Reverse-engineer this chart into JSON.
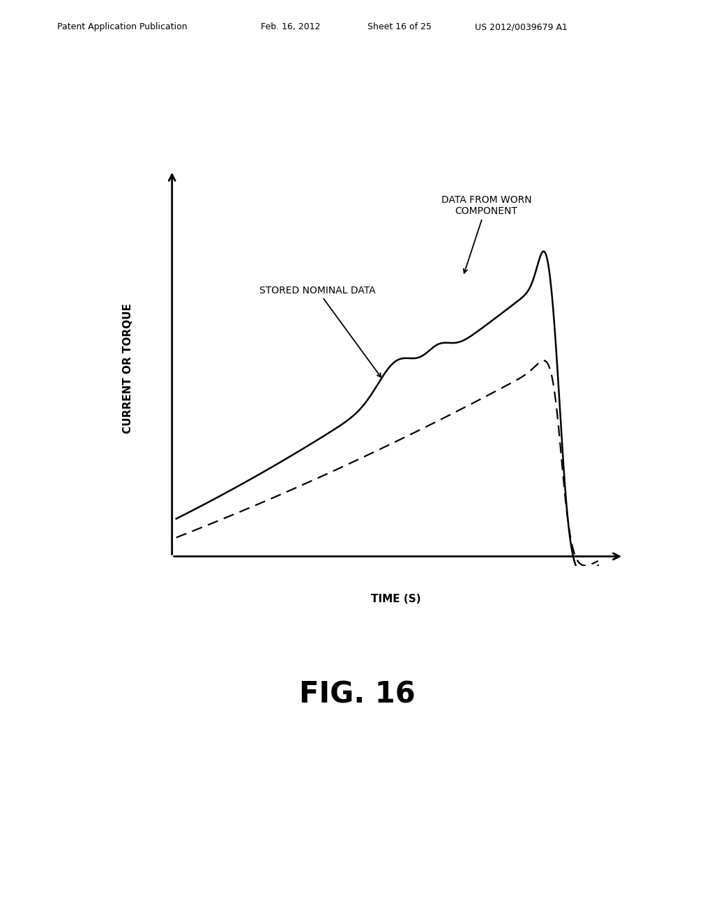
{
  "title_header": "Patent Application Publication",
  "title_date": "Feb. 16, 2012",
  "title_sheet": "Sheet 16 of 25",
  "title_patent": "US 2012/0039679 A1",
  "fig_label": "FIG. 16",
  "xlabel": "TIME (S)",
  "ylabel": "CURRENT OR TORQUE",
  "annotation_worn": "DATA FROM WORN\nCOMPONENT",
  "annotation_nominal": "STORED NOMINAL DATA",
  "background_color": "#ffffff",
  "line_color": "#000000",
  "header_fontsize": 9,
  "fig_label_fontsize": 30,
  "axis_label_fontsize": 11,
  "annotation_fontsize": 10
}
